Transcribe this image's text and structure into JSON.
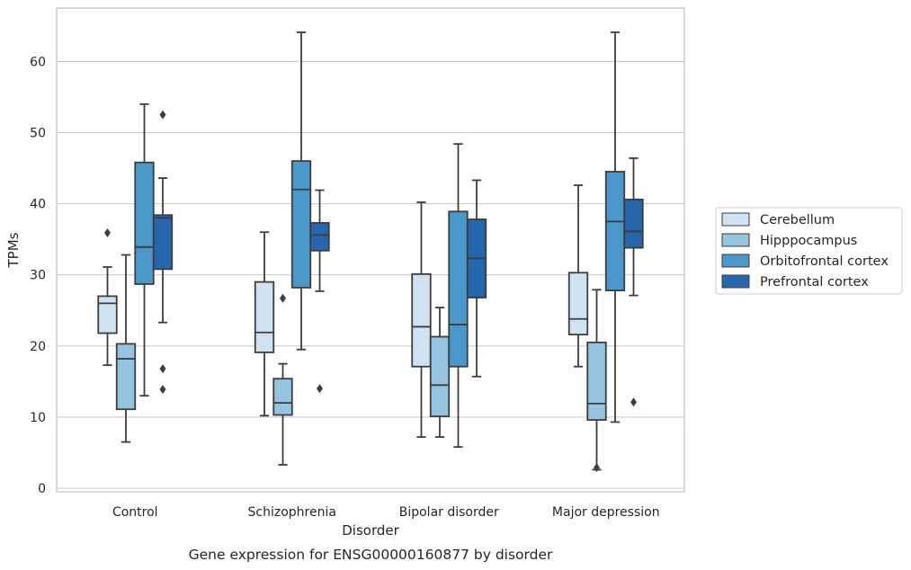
{
  "chart_data": {
    "type": "box",
    "xlabel": "Disorder",
    "ylabel": "TPMs",
    "caption": "Gene expression for ENSG00000160877 by disorder",
    "ylim": [
      -0.5,
      67.5
    ],
    "yticks": [
      0,
      10,
      20,
      30,
      40,
      50,
      60
    ],
    "grid": "horizontal",
    "legend_position": "right",
    "categories": [
      "Control",
      "Schizophrenia",
      "Bipolar disorder",
      "Major depression"
    ],
    "series": [
      {
        "name": "Cerebellum",
        "color": "#d0e1f2",
        "boxes": [
          {
            "whislo": 17.3,
            "q1": 21.8,
            "med": 26.0,
            "q3": 27.0,
            "whishi": 31.1,
            "fliers": [
              35.9
            ]
          },
          {
            "whislo": 10.2,
            "q1": 19.1,
            "med": 21.9,
            "q3": 29.0,
            "whishi": 36.0,
            "fliers": []
          },
          {
            "whislo": 7.2,
            "q1": 17.1,
            "med": 22.7,
            "q3": 30.1,
            "whishi": 40.2,
            "fliers": []
          },
          {
            "whislo": 17.1,
            "q1": 21.6,
            "med": 23.8,
            "q3": 30.3,
            "whishi": 42.6,
            "fliers": []
          }
        ]
      },
      {
        "name": "Hipppocampus",
        "color": "#94c4df",
        "boxes": [
          {
            "whislo": 6.5,
            "q1": 11.1,
            "med": 18.2,
            "q3": 20.3,
            "whishi": 32.8,
            "fliers": []
          },
          {
            "whislo": 3.3,
            "q1": 10.3,
            "med": 12.0,
            "q3": 15.4,
            "whishi": 17.5,
            "fliers": [
              26.7
            ]
          },
          {
            "whislo": 7.2,
            "q1": 10.1,
            "med": 14.5,
            "q3": 21.3,
            "whishi": 25.4,
            "fliers": []
          },
          {
            "whislo": 2.6,
            "q1": 9.6,
            "med": 11.9,
            "q3": 20.5,
            "whishi": 27.9,
            "fliers": [
              2.9
            ]
          }
        ]
      },
      {
        "name": "Orbitofrontal cortex",
        "color": "#4a98c9",
        "boxes": [
          {
            "whislo": 13.0,
            "q1": 28.7,
            "med": 33.9,
            "q3": 45.8,
            "whishi": 54.0,
            "fliers": []
          },
          {
            "whislo": 19.5,
            "q1": 28.2,
            "med": 42.0,
            "q3": 46.0,
            "whishi": 64.1,
            "fliers": []
          },
          {
            "whislo": 5.8,
            "q1": 17.1,
            "med": 23.0,
            "q3": 38.9,
            "whishi": 48.4,
            "fliers": []
          },
          {
            "whislo": 9.3,
            "q1": 27.8,
            "med": 37.5,
            "q3": 44.5,
            "whishi": 64.1,
            "fliers": []
          }
        ]
      },
      {
        "name": "Prefrontal cortex",
        "color": "#2566ad",
        "boxes": [
          {
            "whislo": 23.3,
            "q1": 30.8,
            "med": 38.0,
            "q3": 38.4,
            "whishi": 43.6,
            "fliers": [
              52.5,
              16.8,
              13.9
            ]
          },
          {
            "whislo": 27.7,
            "q1": 33.4,
            "med": 35.6,
            "q3": 37.3,
            "whishi": 41.9,
            "fliers": [
              14.0
            ]
          },
          {
            "whislo": 15.7,
            "q1": 26.8,
            "med": 32.3,
            "q3": 37.8,
            "whishi": 43.3,
            "fliers": []
          },
          {
            "whislo": 27.1,
            "q1": 33.8,
            "med": 36.1,
            "q3": 40.6,
            "whishi": 46.4,
            "fliers": [
              12.1
            ]
          }
        ]
      }
    ]
  }
}
